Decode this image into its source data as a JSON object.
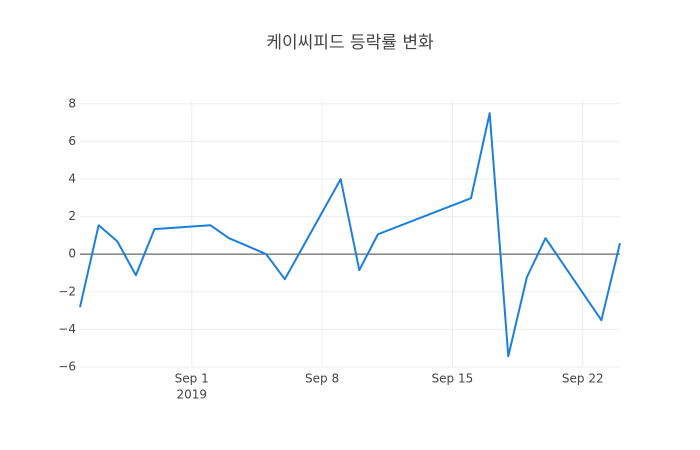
{
  "chart_data": {
    "type": "line",
    "title": "케이씨피드 등락률 변화",
    "x": [
      "2019-08-26",
      "2019-08-27",
      "2019-08-28",
      "2019-08-29",
      "2019-08-30",
      "2019-09-02",
      "2019-09-03",
      "2019-09-04",
      "2019-09-05",
      "2019-09-06",
      "2019-09-09",
      "2019-09-10",
      "2019-09-11",
      "2019-09-16",
      "2019-09-17",
      "2019-09-18",
      "2019-09-19",
      "2019-09-20",
      "2019-09-23",
      "2019-09-24"
    ],
    "series": [
      {
        "color": "#1c7fdc",
        "values": [
          -2.82,
          1.54,
          0.69,
          -1.12,
          1.33,
          1.54,
          0.85,
          0.43,
          0.0,
          -1.33,
          3.99,
          -0.85,
          1.06,
          2.98,
          7.5,
          -5.43,
          -1.22,
          0.85,
          -3.51,
          0.59
        ]
      }
    ],
    "xlim": [
      "2019-08-26",
      "2019-09-24"
    ],
    "xticks": [
      {
        "value": "2019-09-01",
        "label": "Sep 1"
      },
      {
        "value": "2019-09-08",
        "label": "Sep 8"
      },
      {
        "value": "2019-09-15",
        "label": "Sep 15"
      },
      {
        "value": "2019-09-22",
        "label": "Sep 22"
      }
    ],
    "x_year_label": "2019",
    "ylim": [
      -6,
      8.2
    ],
    "yticks": [
      {
        "value": -6,
        "label": "−6"
      },
      {
        "value": -4,
        "label": "−4"
      },
      {
        "value": -2,
        "label": "−2"
      },
      0,
      2,
      4,
      6,
      8
    ],
    "grid": true,
    "zero_line": true
  }
}
